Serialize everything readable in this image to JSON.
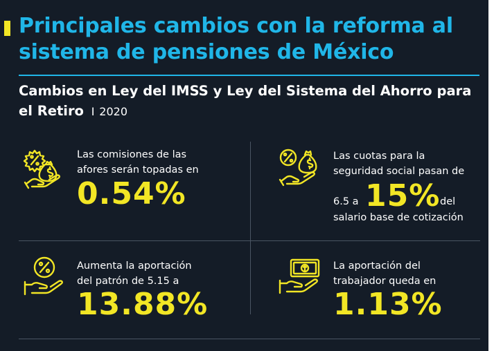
{
  "header": {
    "title": "Principales cambios con la reforma al sistema de pensiones de México",
    "subtitle": "Cambios en Ley del IMSS y Ley del Sistema del Ahorro para el Retiro",
    "separator": "I",
    "year": "2020"
  },
  "cards": [
    {
      "icon": "percent-money-bag-hand-icon",
      "line1": "Las comisiones de las",
      "line2": "afores serán topadas en",
      "value": "0.54%"
    },
    {
      "icon": "percent-money-bag-hand-icon",
      "line1": "Las cuotas para la",
      "line2": "seguridad social pasan de",
      "prefix": "6.5 a",
      "value": "15%",
      "suffix": "del",
      "line4": "salario base de cotización"
    },
    {
      "icon": "percent-coin-hand-icon",
      "line1": "Aumenta la aportación",
      "line2": "del patrón de 5.15 a",
      "value": "13.88%"
    },
    {
      "icon": "banknote-hand-icon",
      "line1": "La aportación del",
      "line2": "trabajador queda en",
      "value": "1.13%"
    }
  ],
  "colors": {
    "background": "#141c27",
    "title": "#20b6e8",
    "accent": "#f2e625",
    "text": "#ffffff"
  }
}
